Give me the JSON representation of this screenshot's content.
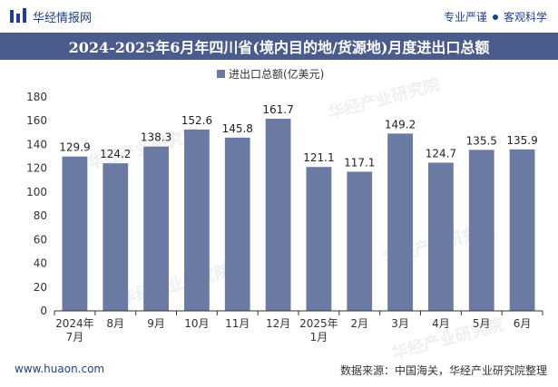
{
  "header": {
    "brand": "华经情报网",
    "tagline_left": "专业严谨",
    "tagline_right": "客观科学"
  },
  "watermark": "华经产业研究院",
  "footer": {
    "website": "www.huaon.com",
    "source": "数据来源：中国海关，华经产业研究院整理"
  },
  "colors": {
    "bar": "#6b7aa3",
    "title_bg": "#4b5c8c",
    "brand": "#1f3f8f"
  },
  "chart_data": {
    "type": "bar",
    "title": "2024-2025年6月年四川省(境内目的地/货源地)月度进出口总额",
    "legend": "进出口总额(亿美元)",
    "legend_position": "top-center",
    "categories": [
      "2024年\n7月",
      "8月",
      "9月",
      "10月",
      "11月",
      "12月",
      "2025年\n1月",
      "2月",
      "3月",
      "4月",
      "5月",
      "6月"
    ],
    "values": [
      129.9,
      124.2,
      138.3,
      152.6,
      145.8,
      161.7,
      121.1,
      117.1,
      149.2,
      124.7,
      135.5,
      135.9
    ],
    "value_labels": [
      "129.9",
      "124.2",
      "138.3",
      "152.6",
      "145.8",
      "161.7",
      "121.1",
      "117.1",
      "149.2",
      "124.7",
      "135.5",
      "135.9"
    ],
    "ylim": [
      0,
      180
    ],
    "yticks": [
      0,
      20,
      40,
      60,
      80,
      100,
      120,
      140,
      160,
      180
    ],
    "xlabel": "",
    "ylabel": "",
    "grid": false
  }
}
